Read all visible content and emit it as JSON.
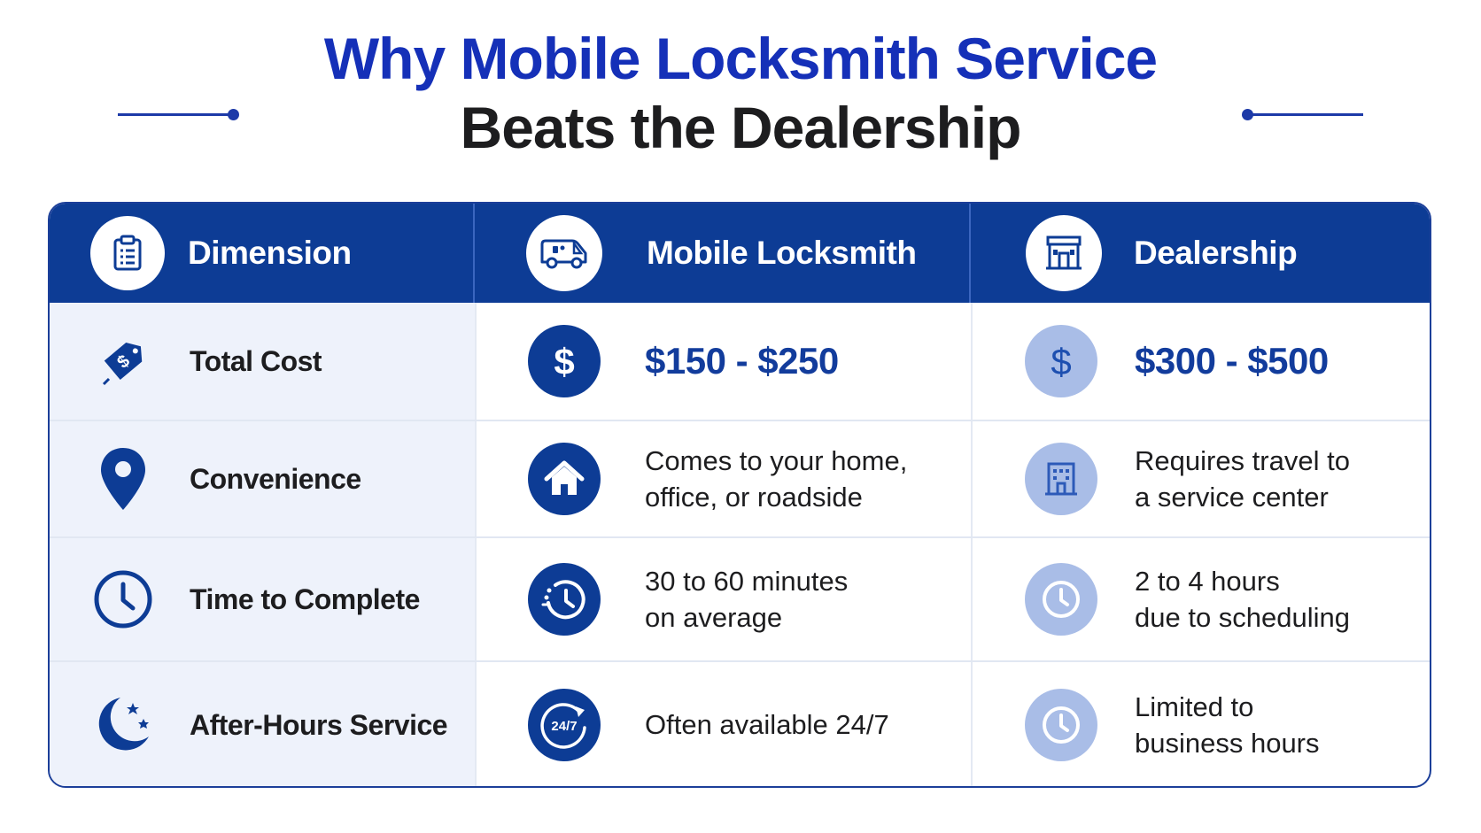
{
  "title": {
    "line1": "Why Mobile Locksmith Service",
    "line2": "Beats the Dealership"
  },
  "colors": {
    "brand_blue": "#0d3c95",
    "title_blue": "#1530b8",
    "light_icon": "#a9bde7",
    "row_tint": "#eef2fb"
  },
  "header": {
    "dimension": {
      "label": "Dimension",
      "icon": "clipboard-icon"
    },
    "mobile": {
      "label": "Mobile Locksmith",
      "icon": "van-icon"
    },
    "dealership": {
      "label": "Dealership",
      "icon": "storefront-icon"
    }
  },
  "rows": [
    {
      "dimension": "Total Cost",
      "dimension_icon": "price-tag-icon",
      "mobile_icon": "dollar-icon",
      "mobile": "$150 - $250",
      "dealership_icon": "dollar-icon",
      "dealership": "$300 - $500"
    },
    {
      "dimension": "Convenience",
      "dimension_icon": "map-pin-icon",
      "mobile_icon": "home-icon",
      "mobile_line1": "Comes to your home,",
      "mobile_line2": "office, or roadside",
      "dealership_icon": "building-icon",
      "dealership_line1": "Requires travel to",
      "dealership_line2": "a service center"
    },
    {
      "dimension": "Time to Complete",
      "dimension_icon": "clock-icon",
      "mobile_icon": "fast-clock-icon",
      "mobile_line1": "30 to 60 minutes",
      "mobile_line2": "on average",
      "dealership_icon": "clock-icon",
      "dealership_line1": "2 to 4 hours",
      "dealership_line2": "due to scheduling"
    },
    {
      "dimension": "After-Hours Service",
      "dimension_icon": "moon-stars-icon",
      "mobile_icon": "24-7-icon",
      "mobile_icon_text": "24/7",
      "mobile": "Often available 24/7",
      "dealership_icon": "clock-icon",
      "dealership_line1": "Limited to",
      "dealership_line2": "business hours"
    }
  ]
}
